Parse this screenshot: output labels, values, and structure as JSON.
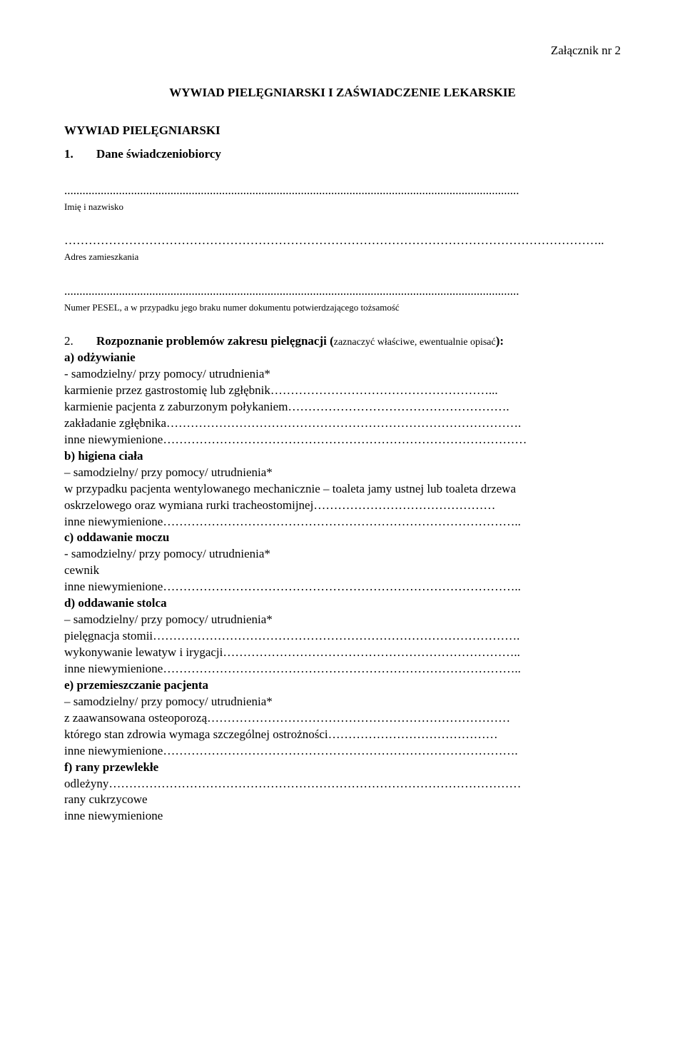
{
  "attachment": "Załącznik nr 2",
  "mainTitle": "WYWIAD PIELĘGNIARSKI I ZAŚWIADCZENIE LEKARSKIE",
  "sectionHeading": "WYWIAD PIELĘGNIARSKI",
  "q1": {
    "num": "1.",
    "title": "Dane świadczeniobiorcy",
    "dots1": "......................................................................................................................................................",
    "label1": "Imię i nazwisko",
    "dots2": "……………………………………………………………………………………………………………………..",
    "label2": "Adres zamieszkania",
    "dots3": "......................................................................................................................................................",
    "label3": "Numer PESEL, a w przypadku jego braku numer dokumentu potwierdzającego tożsamość"
  },
  "q2": {
    "num": "2.",
    "introBold": "Rozpoznanie problemów zakresu pielęgnacji (",
    "introSmall": "zaznaczyć właściwe, ewentualnie opisać",
    "introClose": "):",
    "a": {
      "label": "a)  odżywianie",
      "l1": "    - samodzielny/ przy pomocy/ utrudnienia*",
      "l2": " karmienie przez gastrostomię lub zgłębnik………………………………………………...",
      "l3": " karmienie pacjenta z zaburzonym połykaniem……………………………………………….",
      "l4": " zakładanie zgłębnika…………………………………………………………………………….",
      "l5": " inne niewymienione………………………………………………………………………………"
    },
    "b": {
      "label": "b)  higiena ciała",
      "l1": " – samodzielny/ przy pomocy/ utrudnienia*",
      "l2": "w przypadku pacjenta wentylowanego mechanicznie – toaleta jamy ustnej lub toaleta drzewa",
      "l3": "oskrzelowego oraz wymiana rurki tracheostomijnej………………………………………",
      "l4": " inne niewymienione…………………………………………………………………………….."
    },
    "c": {
      "label": "c)  oddawanie moczu",
      "l1": "- samodzielny/ przy pomocy/ utrudnienia*",
      "l2": " cewnik",
      "l3": " inne niewymienione…………………………………………………………………………….."
    },
    "d": {
      "label": "d)  oddawanie stolca",
      "l1": " – samodzielny/ przy pomocy/ utrudnienia*",
      "l2": " pielęgnacja stomii……………………………………………………………………………….",
      "l3": " wykonywanie lewatyw i irygacji………………………………………………………………..",
      "l4": " inne niewymienione…………………………………………………………………………….."
    },
    "e": {
      "label": "e)  przemieszczanie pacjenta",
      "l1": " – samodzielny/ przy pomocy/ utrudnienia*",
      "l2": " z zaawansowana osteoporozą…………………………………………………………………",
      "l3": " którego stan zdrowia wymaga szczególnej ostrożności……………………………………",
      "l4": " inne niewymienione……………………………………………………………………………."
    },
    "f": {
      "label": "f)  rany przewlekłe",
      "l1": " odleżyny…………………………………………………………………………………………",
      "l2": " rany cukrzycowe",
      "l3": " inne niewymienione"
    }
  }
}
